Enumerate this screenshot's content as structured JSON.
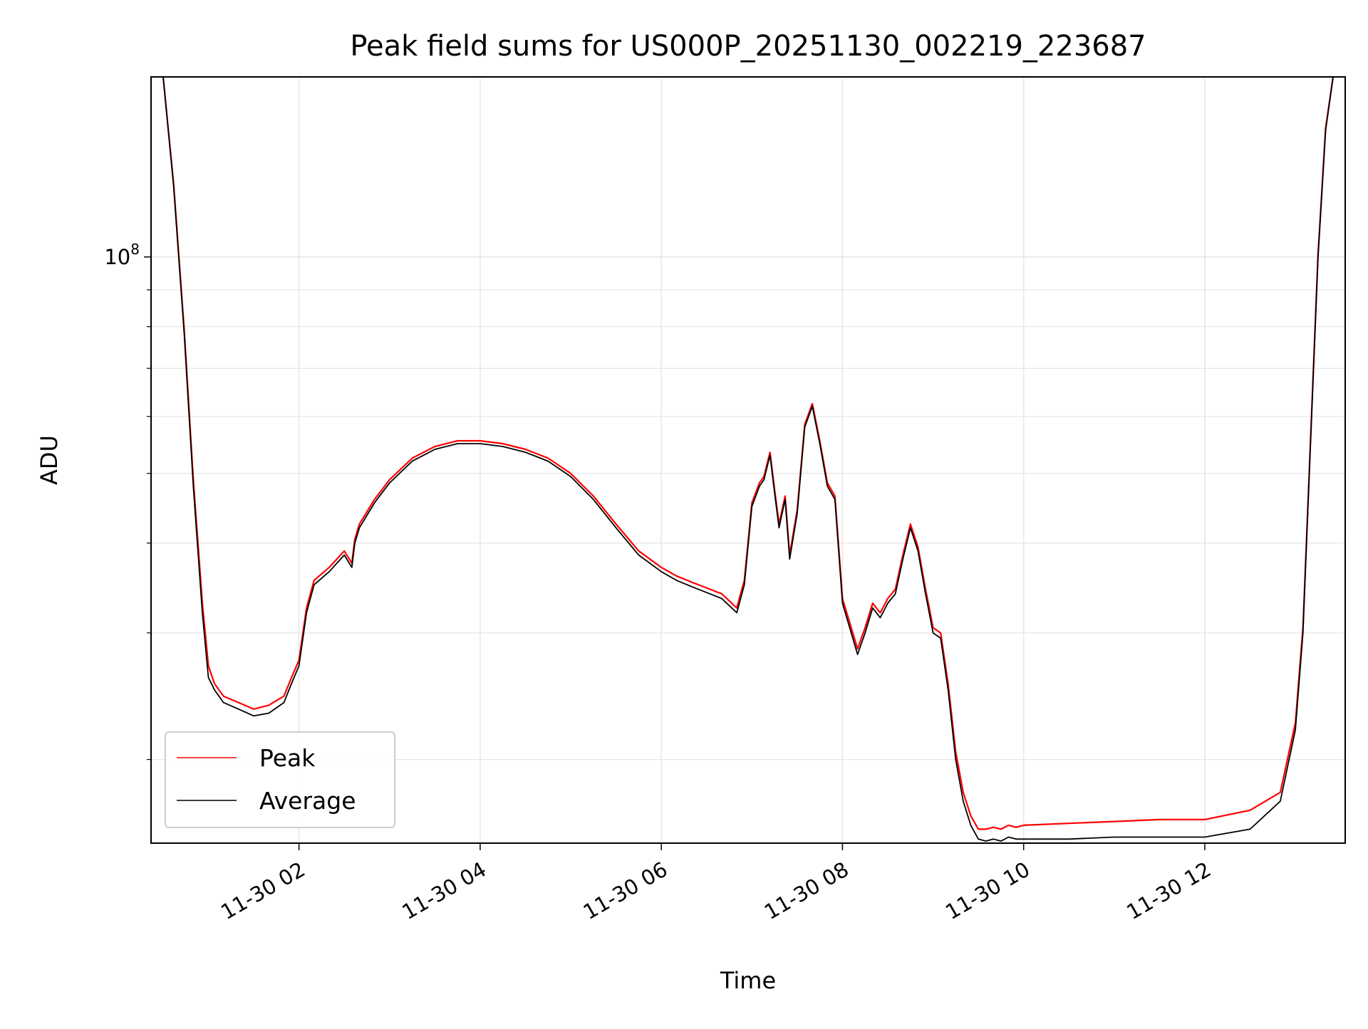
{
  "chart_data": {
    "type": "line",
    "title": "Peak field sums for US000P_20251130_002219_223687",
    "xlabel": "Time",
    "ylabel": "ADU",
    "y_scale": "log",
    "grid": true,
    "legend_position": "lower-left",
    "x_ticks": [
      "11-30 02",
      "11-30 04",
      "11-30 06",
      "11-30 08",
      "11-30 10",
      "11-30 12"
    ],
    "y_tick_labels": [
      {
        "base": "10",
        "exponent": "8",
        "value": 100000000
      }
    ],
    "xlim": [
      "2025-11-30 00:22",
      "2025-11-30 13:33"
    ],
    "ylim": [
      15300000,
      178000000
    ],
    "series": [
      {
        "name": "Peak",
        "color": "#ff0000"
      },
      {
        "name": "Average",
        "color": "#000000"
      }
    ],
    "x": [
      "00:30",
      "00:37",
      "00:44",
      "00:50",
      "00:56",
      "01:00",
      "01:04",
      "01:10",
      "01:20",
      "01:30",
      "01:40",
      "01:50",
      "01:55",
      "02:00",
      "02:05",
      "02:10",
      "02:20",
      "02:30",
      "02:35",
      "02:37",
      "02:40",
      "02:50",
      "03:00",
      "03:15",
      "03:30",
      "03:45",
      "04:00",
      "04:15",
      "04:30",
      "04:45",
      "05:00",
      "05:15",
      "05:30",
      "05:45",
      "06:00",
      "06:10",
      "06:20",
      "06:40",
      "06:50",
      "06:55",
      "07:00",
      "07:05",
      "07:08",
      "07:12",
      "07:15",
      "07:18",
      "07:22",
      "07:25",
      "07:30",
      "07:35",
      "07:40",
      "07:45",
      "07:50",
      "07:55",
      "08:00",
      "08:10",
      "08:15",
      "08:20",
      "08:25",
      "08:30",
      "08:35",
      "08:40",
      "08:45",
      "08:50",
      "08:55",
      "09:00",
      "09:05",
      "09:10",
      "09:15",
      "09:20",
      "09:25",
      "09:30",
      "09:35",
      "09:40",
      "09:45",
      "09:50",
      "09:55",
      "10:00",
      "10:30",
      "11:00",
      "11:30",
      "12:00",
      "12:30",
      "12:50",
      "13:00",
      "13:05",
      "13:10",
      "13:15",
      "13:20",
      "13:25"
    ],
    "average_values": [
      178000000,
      125000000,
      78000000,
      48000000,
      32000000,
      26000000,
      25000000,
      24000000,
      23500000,
      23000000,
      23200000,
      24000000,
      25500000,
      27000000,
      32000000,
      35000000,
      36500000,
      38500000,
      37000000,
      40000000,
      42000000,
      45500000,
      48500000,
      52000000,
      54000000,
      55000000,
      55000000,
      54500000,
      53500000,
      52000000,
      49500000,
      46000000,
      42000000,
      38500000,
      36500000,
      35500000,
      34800000,
      33500000,
      32000000,
      35000000,
      45000000,
      48000000,
      49000000,
      53000000,
      47000000,
      42000000,
      46000000,
      38000000,
      44000000,
      58000000,
      62000000,
      55000000,
      48000000,
      46000000,
      33000000,
      28000000,
      30000000,
      32500000,
      31500000,
      33000000,
      34000000,
      38000000,
      42000000,
      39000000,
      34000000,
      30000000,
      29500000,
      25000000,
      20000000,
      17500000,
      16200000,
      15500000,
      15400000,
      15500000,
      15400000,
      15600000,
      15500000,
      15500000,
      15500000,
      15600000,
      15600000,
      15600000,
      16000000,
      17500000,
      22000000,
      30000000,
      55000000,
      100000000,
      150000000,
      178000000
    ],
    "peak_values": [
      178000000,
      126000000,
      79000000,
      49000000,
      33000000,
      27000000,
      25500000,
      24500000,
      24000000,
      23500000,
      23800000,
      24500000,
      26000000,
      27500000,
      32500000,
      35500000,
      37000000,
      39000000,
      37500000,
      40500000,
      42500000,
      46000000,
      49000000,
      52500000,
      54500000,
      55500000,
      55500000,
      55000000,
      54000000,
      52500000,
      50000000,
      46500000,
      42500000,
      39000000,
      37000000,
      36000000,
      35300000,
      34000000,
      32500000,
      35500000,
      45500000,
      48500000,
      49500000,
      53500000,
      47500000,
      42500000,
      46500000,
      38500000,
      44500000,
      58500000,
      62500000,
      55500000,
      48500000,
      46500000,
      33500000,
      28500000,
      30500000,
      33000000,
      32000000,
      33500000,
      34500000,
      38500000,
      42500000,
      39500000,
      34500000,
      30500000,
      30000000,
      25500000,
      20500000,
      18000000,
      16700000,
      16000000,
      16000000,
      16100000,
      16000000,
      16200000,
      16100000,
      16200000,
      16300000,
      16400000,
      16500000,
      16500000,
      17000000,
      18000000,
      22500000,
      30500000,
      55500000,
      101000000,
      151000000,
      178000000
    ]
  }
}
